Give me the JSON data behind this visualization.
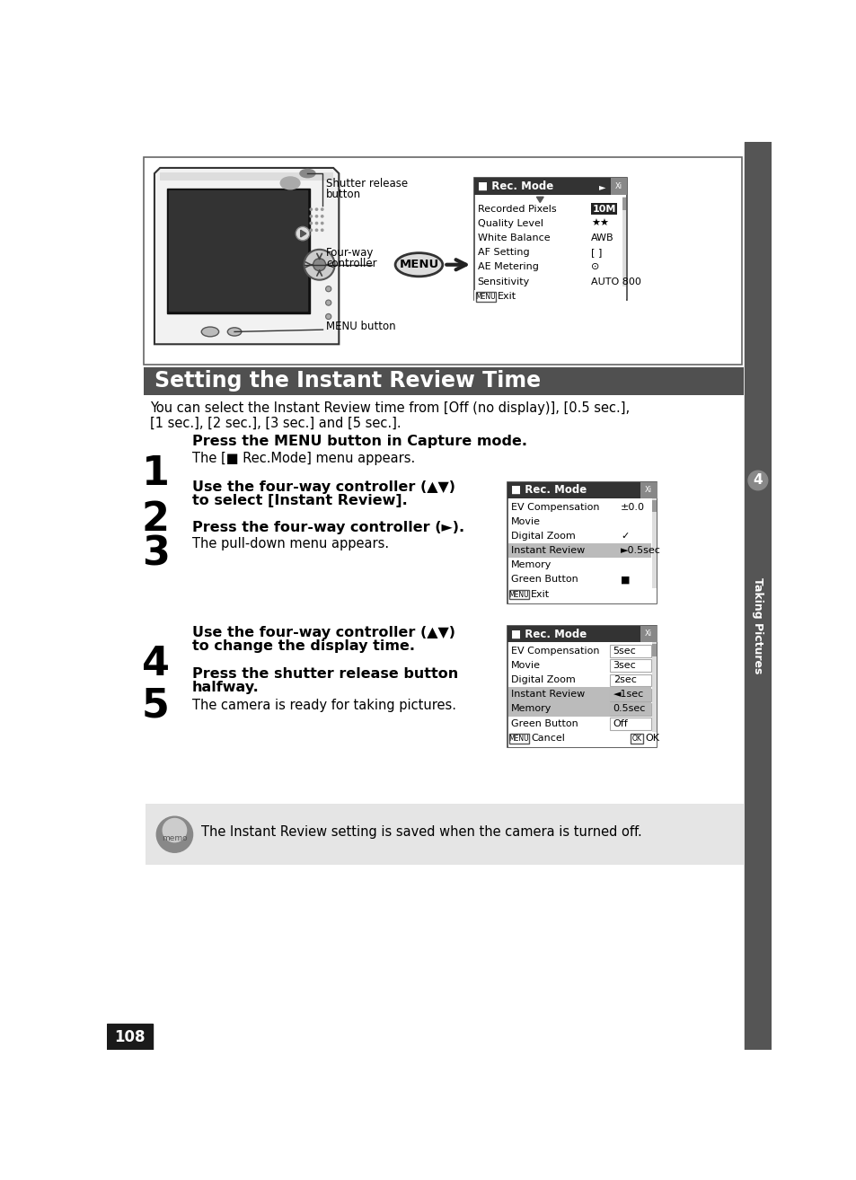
{
  "page_bg": "#ffffff",
  "sidebar_color": "#555555",
  "sidebar_text": "Taking Pictures",
  "sidebar_number": "4",
  "sidebar_number_bg": "#888888",
  "page_number": "108",
  "page_number_bg": "#1a1a1a",
  "title_text": "Setting the Instant Review Time",
  "title_bg": "#505050",
  "title_color": "#ffffff",
  "intro_text1": "You can select the Instant Review time from [Off (no display)], [0.5 sec.],",
  "intro_text2": "[1 sec.], [2 sec.], [3 sec.] and [5 sec.].",
  "step1_bold": "Press the MENU button in Capture mode.",
  "step1_normal": "The [",
  "step1_normal2": " Rec.Mode] menu appears.",
  "step2_bold1": "Use the four-way controller (▲▼)",
  "step2_bold2": "to select [Instant Review].",
  "step3_bold": "Press the four-way controller (►).",
  "step3_normal": "The pull-down menu appears.",
  "step4_bold1": "Use the four-way controller (▲▼)",
  "step4_bold2": "to change the display time.",
  "step5_bold1": "Press the shutter release button",
  "step5_bold2": "halfway.",
  "step5_normal": "The camera is ready for taking pictures.",
  "menu1_title": "■ Rec. Mode",
  "menu1_items": [
    [
      "Recorded Pixels",
      "10M",
      true
    ],
    [
      "Quality Level",
      "★★",
      false
    ],
    [
      "White Balance",
      "AWB",
      false
    ],
    [
      "AF Setting",
      "[ ]",
      false
    ],
    [
      "AE Metering",
      "⊙",
      false
    ],
    [
      "Sensitivity",
      "AUTO 800",
      false
    ]
  ],
  "menu2_title": "■ Rec. Mode",
  "menu2_items": [
    [
      "EV Compensation",
      "±0.0",
      false
    ],
    [
      "Movie",
      "",
      false
    ],
    [
      "Digital Zoom",
      "✓",
      false
    ],
    [
      "Instant Review",
      "►0.5sec",
      true
    ],
    [
      "Memory",
      "",
      false
    ],
    [
      "Green Button",
      "■",
      false
    ]
  ],
  "menu3_title": "■ Rec. Mode",
  "menu3_items": [
    [
      "EV Compensation",
      "5sec",
      false
    ],
    [
      "Movie",
      "3sec",
      false
    ],
    [
      "Digital Zoom",
      "2sec",
      false
    ],
    [
      "Instant Review",
      "◄1sec",
      true
    ],
    [
      "Memory",
      "0.5sec",
      false
    ],
    [
      "Green Button",
      "Off",
      false
    ]
  ],
  "memo_text": "The Instant Review setting is saved when the camera is turned off.",
  "label_shutter": "Shutter release\nbutton",
  "label_fourway": "Four-way\ncontroller",
  "label_menu": "MENU button"
}
